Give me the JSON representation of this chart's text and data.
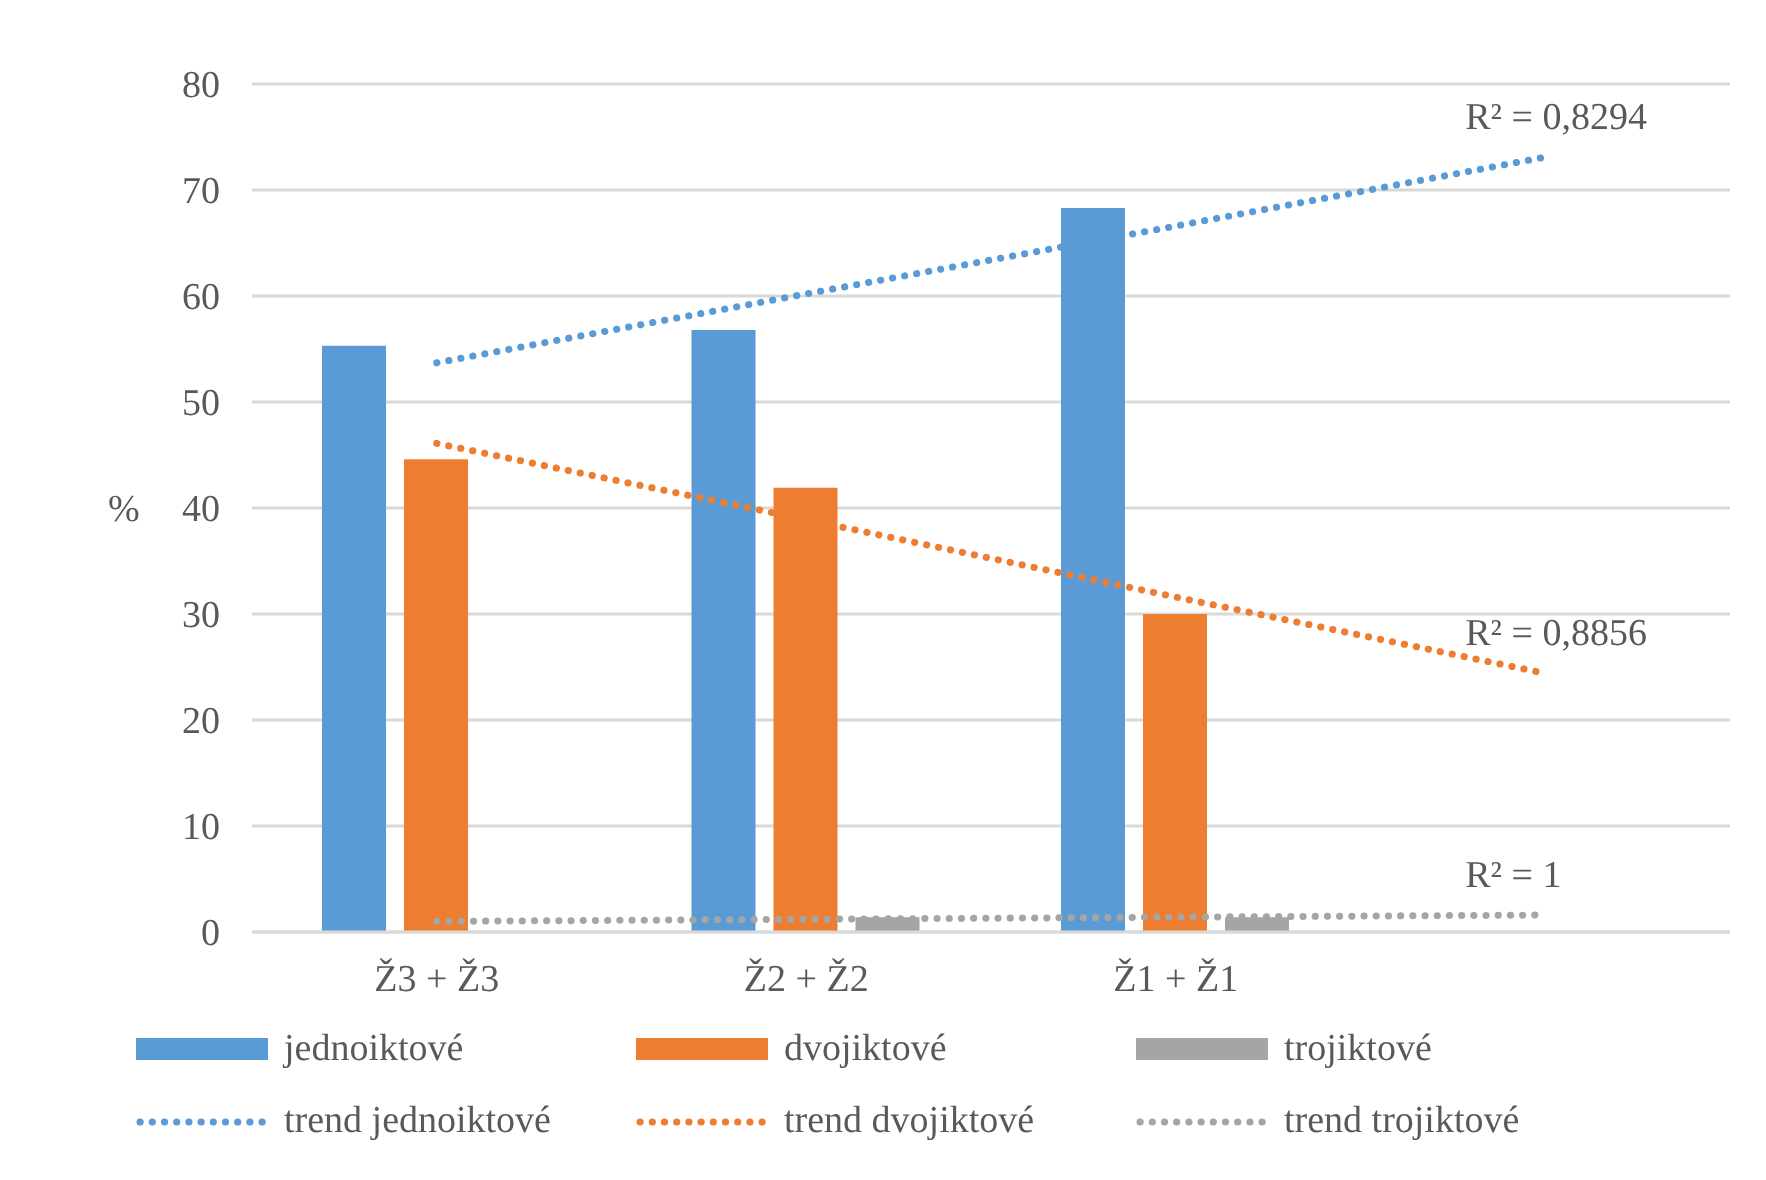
{
  "chart_data": {
    "type": "bar",
    "ylabel": "%",
    "categories": [
      "Ž3 + Ž3",
      "Ž2 + Ž2",
      "Ž1 + Ž1",
      null
    ],
    "series": [
      {
        "name": "jednoiktové",
        "color": "#5b9bd5",
        "values": [
          55.3,
          56.8,
          68.3,
          null
        ]
      },
      {
        "name": "dvojiktové",
        "color": "#ed7d31",
        "values": [
          44.6,
          41.9,
          30.0,
          null
        ]
      },
      {
        "name": "trojiktové",
        "color": "#a5a5a5",
        "values": [
          0,
          1.4,
          1.4,
          null
        ]
      },
      {
        "name": "trend jednoiktové",
        "type": "line",
        "color": "#5b9bd5",
        "line_style": "dotted",
        "values": [
          53.7,
          60.2,
          66.6,
          73.1
        ]
      },
      {
        "name": "trend dvojiktové",
        "type": "line",
        "color": "#ed7d31",
        "line_style": "dotted",
        "values": [
          46.1,
          38.9,
          31.6,
          24.4
        ]
      },
      {
        "name": "trend trojiktové",
        "type": "line",
        "color": "#a5a5a5",
        "line_style": "dotted",
        "values": [
          1.0,
          1.2,
          1.4,
          1.6
        ]
      }
    ],
    "annotations": [
      "R² = 0,8294",
      "R² = 0,8856",
      "R² = 1"
    ],
    "ylim": [
      0,
      80
    ],
    "yticks": [
      0,
      10,
      20,
      30,
      40,
      50,
      60,
      70,
      80
    ],
    "grid": "y",
    "legend": "bottom",
    "marker": "none"
  }
}
